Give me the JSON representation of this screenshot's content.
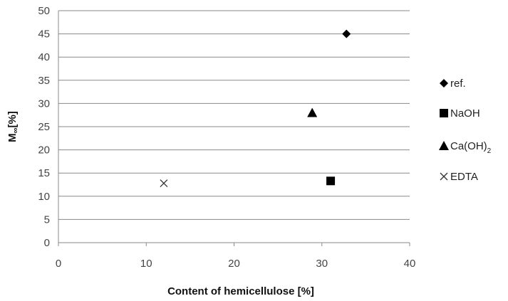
{
  "chart_data": {
    "type": "scatter",
    "xlabel": "Content of hemicellulose [%]",
    "ylabel_main": "M",
    "ylabel_sub": "∞",
    "ylabel_unit": "[%]",
    "xlim": [
      0,
      40
    ],
    "ylim": [
      0,
      50
    ],
    "xticks": [
      "0",
      "10",
      "20",
      "30",
      "40"
    ],
    "yticks": [
      "0",
      "5",
      "10",
      "15",
      "20",
      "25",
      "30",
      "35",
      "40",
      "45",
      "50"
    ],
    "grid": "horizontal",
    "legend_position": "right",
    "series": [
      {
        "name": "ref.",
        "marker": "diamond",
        "x": [
          32.8
        ],
        "y": [
          45
        ]
      },
      {
        "name": "NaOH",
        "marker": "square",
        "x": [
          31
        ],
        "y": [
          13.3
        ]
      },
      {
        "name": "Ca(OH)",
        "name_sub": "2",
        "marker": "triangle",
        "x": [
          28.9
        ],
        "y": [
          28
        ]
      },
      {
        "name": "EDTA",
        "marker": "x",
        "x": [
          12
        ],
        "y": [
          12.8
        ]
      }
    ]
  }
}
